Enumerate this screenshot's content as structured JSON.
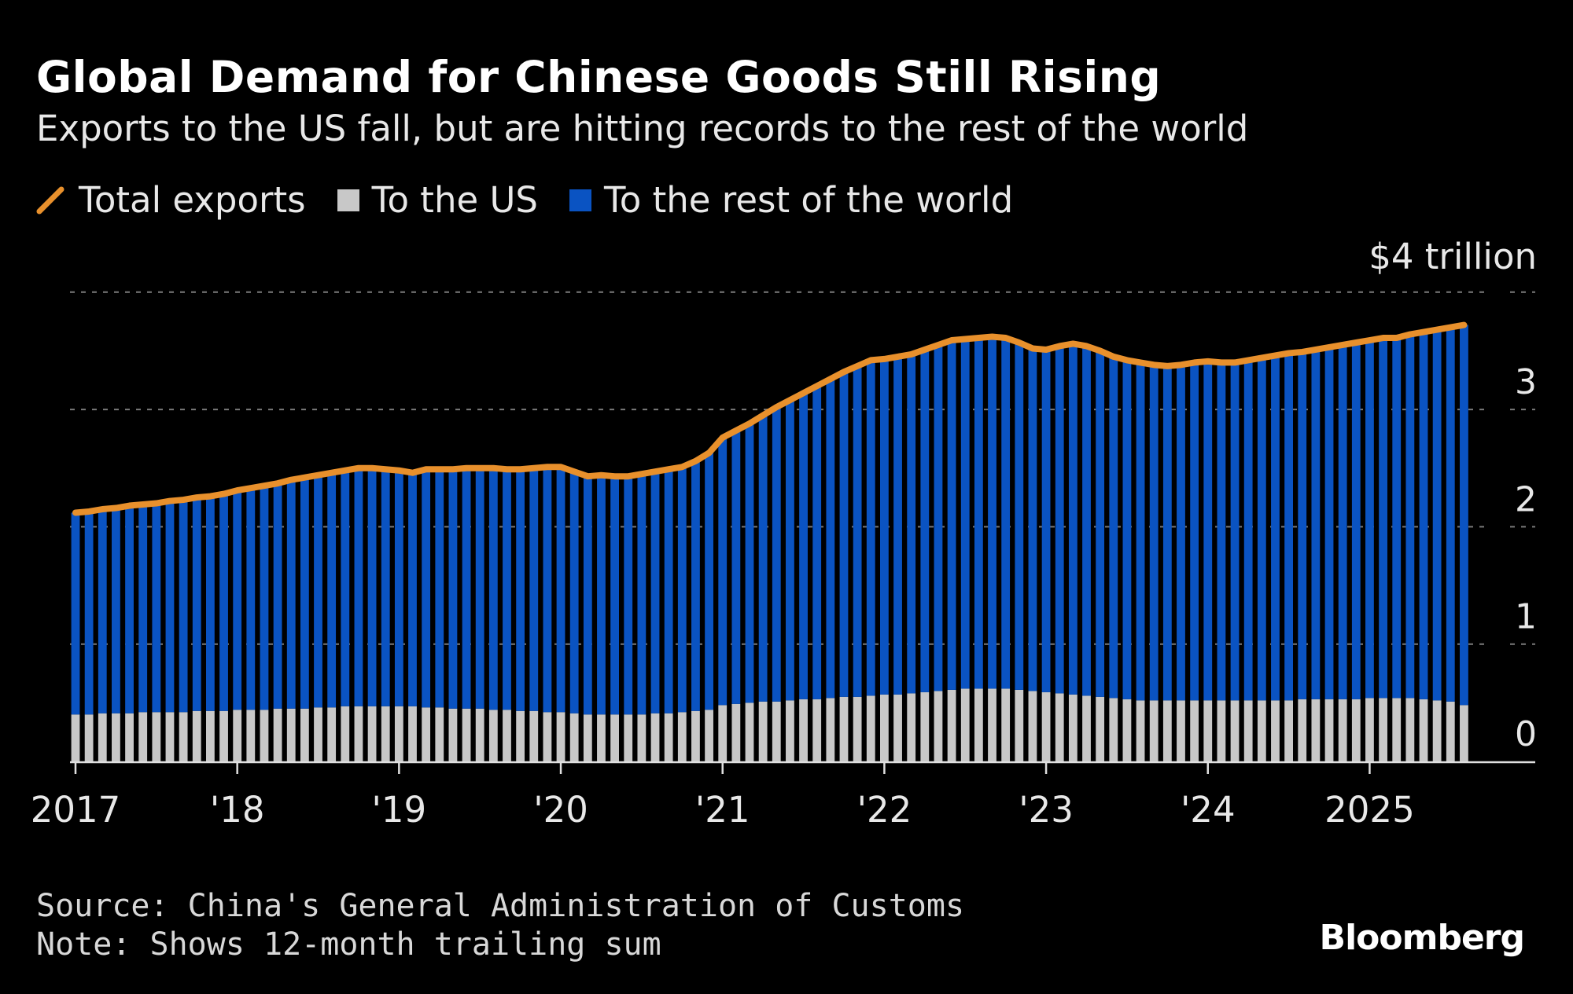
{
  "title": "Global Demand for Chinese Goods Still Rising",
  "subtitle": "Exports to the US fall, but are hitting records to the rest of the world",
  "legend": [
    {
      "label": "Total exports",
      "color": "#e8902c",
      "kind": "line"
    },
    {
      "label": "To the US",
      "color": "#c8c8c8",
      "kind": "bar"
    },
    {
      "label": "To the rest of the world",
      "color": "#0a53c2",
      "kind": "bar"
    }
  ],
  "footer": {
    "source": "Source: China's General Administration of Customs",
    "note": "Note: Shows 12-month trailing sum"
  },
  "brand": "Bloomberg",
  "chart_data": {
    "type": "bar",
    "stacked": true,
    "unit_label": "$4 trillion",
    "ylim": [
      0,
      4
    ],
    "y_ticks": [
      "0",
      "1",
      "2",
      "3"
    ],
    "y_tick_values": [
      0,
      1,
      2,
      3
    ],
    "grid": true,
    "legend_position": "top-left",
    "x_start": "2017-01",
    "x_end": "2025-08",
    "x_frequency": "monthly",
    "x_tick_labels": [
      "2017",
      "'18",
      "'19",
      "'20",
      "'21",
      "'22",
      "'23",
      "'24",
      "2025"
    ],
    "series": [
      {
        "name": "Total exports",
        "kind": "line",
        "values": [
          2.12,
          2.13,
          2.15,
          2.16,
          2.18,
          2.19,
          2.2,
          2.22,
          2.23,
          2.25,
          2.26,
          2.28,
          2.31,
          2.33,
          2.35,
          2.37,
          2.4,
          2.42,
          2.44,
          2.46,
          2.48,
          2.5,
          2.5,
          2.49,
          2.48,
          2.46,
          2.49,
          2.49,
          2.49,
          2.5,
          2.5,
          2.5,
          2.49,
          2.49,
          2.5,
          2.51,
          2.51,
          2.47,
          2.43,
          2.44,
          2.43,
          2.43,
          2.45,
          2.47,
          2.49,
          2.51,
          2.56,
          2.63,
          2.76,
          2.82,
          2.88,
          2.95,
          3.02,
          3.08,
          3.14,
          3.2,
          3.26,
          3.32,
          3.37,
          3.42,
          3.43,
          3.45,
          3.47,
          3.51,
          3.55,
          3.59,
          3.6,
          3.61,
          3.62,
          3.61,
          3.57,
          3.52,
          3.51,
          3.54,
          3.56,
          3.54,
          3.5,
          3.45,
          3.42,
          3.4,
          3.38,
          3.37,
          3.38,
          3.4,
          3.41,
          3.4,
          3.4,
          3.42,
          3.44,
          3.46,
          3.48,
          3.49,
          3.51,
          3.53,
          3.55,
          3.57,
          3.59,
          3.61,
          3.61,
          3.64,
          3.66,
          3.68,
          3.7,
          3.72
        ]
      },
      {
        "name": "To the US",
        "kind": "bar",
        "values": [
          0.4,
          0.4,
          0.41,
          0.41,
          0.41,
          0.42,
          0.42,
          0.42,
          0.42,
          0.43,
          0.43,
          0.43,
          0.44,
          0.44,
          0.44,
          0.45,
          0.45,
          0.45,
          0.46,
          0.46,
          0.47,
          0.47,
          0.47,
          0.47,
          0.47,
          0.47,
          0.46,
          0.46,
          0.45,
          0.45,
          0.45,
          0.44,
          0.44,
          0.43,
          0.43,
          0.42,
          0.42,
          0.41,
          0.4,
          0.4,
          0.4,
          0.4,
          0.4,
          0.41,
          0.41,
          0.42,
          0.43,
          0.44,
          0.48,
          0.49,
          0.5,
          0.51,
          0.51,
          0.52,
          0.53,
          0.53,
          0.54,
          0.55,
          0.55,
          0.56,
          0.57,
          0.57,
          0.58,
          0.59,
          0.6,
          0.61,
          0.62,
          0.62,
          0.62,
          0.62,
          0.61,
          0.6,
          0.59,
          0.58,
          0.57,
          0.56,
          0.55,
          0.54,
          0.53,
          0.52,
          0.52,
          0.52,
          0.52,
          0.52,
          0.52,
          0.52,
          0.52,
          0.52,
          0.52,
          0.52,
          0.52,
          0.53,
          0.53,
          0.53,
          0.53,
          0.53,
          0.54,
          0.54,
          0.54,
          0.54,
          0.53,
          0.52,
          0.51,
          0.48
        ]
      },
      {
        "name": "To the rest of the world",
        "kind": "bar",
        "derived": "Total exports minus To the US"
      }
    ]
  }
}
